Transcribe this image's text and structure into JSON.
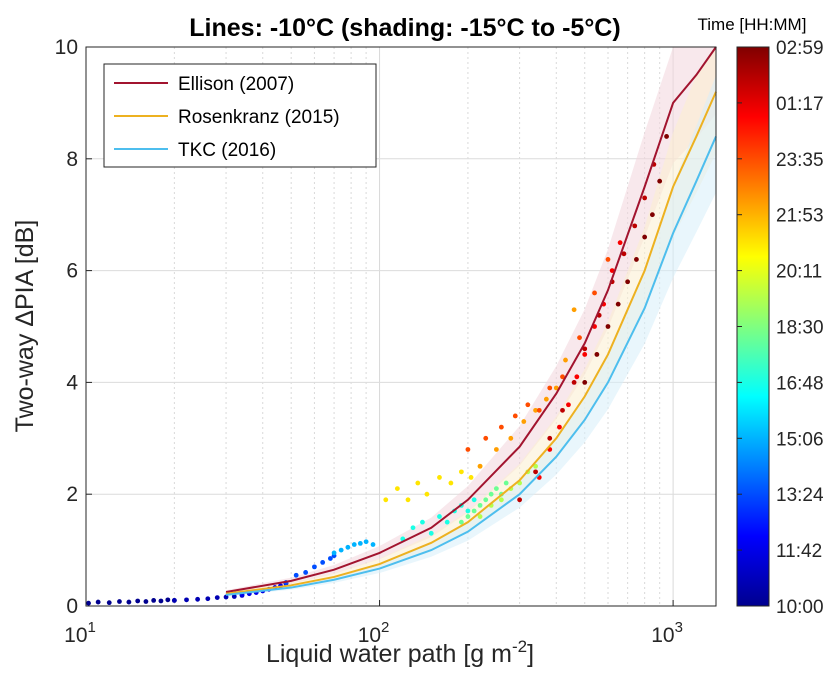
{
  "chart_data": {
    "type": "scatter",
    "title": "Lines: -10°C (shading: -15°C to -5°C)",
    "xlabel_main": "Liquid water path [g m",
    "xlabel_sup": "-2",
    "xlabel_end": "]",
    "ylabel": "Two-way ΔPIA [dB]",
    "xscale": "log",
    "xlim": [
      10,
      1400
    ],
    "ylim": [
      0,
      10
    ],
    "grid": true,
    "x_ticks": [
      10,
      100,
      1000
    ],
    "x_tick_labels": [
      {
        "base": "10",
        "exp": "1"
      },
      {
        "base": "10",
        "exp": "2"
      },
      {
        "base": "10",
        "exp": "3"
      }
    ],
    "y_ticks": [
      0,
      2,
      4,
      6,
      8,
      10
    ],
    "legend_position": "top-left",
    "series": [
      {
        "name": "Ellison (2007)",
        "color": "#a2142f",
        "x": [
          30,
          50,
          70,
          100,
          150,
          200,
          300,
          400,
          500,
          600,
          800,
          1000,
          1200,
          1400
        ],
        "y": [
          0.25,
          0.45,
          0.65,
          0.95,
          1.4,
          1.9,
          2.85,
          3.8,
          4.7,
          5.65,
          7.5,
          9.0,
          9.5,
          10
        ]
      },
      {
        "name": "Rosenkranz (2015)",
        "color": "#edb120",
        "x": [
          30,
          50,
          70,
          100,
          150,
          200,
          300,
          400,
          500,
          600,
          800,
          1000,
          1200,
          1400
        ],
        "y": [
          0.22,
          0.37,
          0.52,
          0.75,
          1.13,
          1.5,
          2.25,
          3.0,
          3.75,
          4.5,
          6.0,
          7.5,
          8.4,
          9.2
        ]
      },
      {
        "name": "TKC (2016)",
        "color": "#4dbeee",
        "x": [
          30,
          50,
          70,
          100,
          150,
          200,
          300,
          400,
          500,
          600,
          800,
          1000,
          1200,
          1400
        ],
        "y": [
          0.2,
          0.33,
          0.47,
          0.67,
          1.0,
          1.33,
          2.0,
          2.67,
          3.33,
          4.0,
          5.33,
          6.67,
          7.6,
          8.4
        ]
      }
    ],
    "observations": [
      {
        "time_frac": 0.0,
        "x": [
          10.2,
          11,
          12,
          13,
          14,
          15,
          16,
          17,
          18,
          19,
          20
        ],
        "y": [
          0.05,
          0.07,
          0.06,
          0.08,
          0.07,
          0.09,
          0.08,
          0.1,
          0.09,
          0.11,
          0.1
        ]
      },
      {
        "time_frac": 0.04,
        "x": [
          20,
          22,
          24,
          26,
          28,
          30,
          32,
          34
        ],
        "y": [
          0.1,
          0.11,
          0.12,
          0.13,
          0.15,
          0.16,
          0.17,
          0.19
        ]
      },
      {
        "time_frac": 0.1,
        "x": [
          34,
          36,
          38,
          40,
          42,
          44,
          46,
          48
        ],
        "y": [
          0.2,
          0.22,
          0.24,
          0.27,
          0.3,
          0.33,
          0.36,
          0.4
        ]
      },
      {
        "time_frac": 0.2,
        "x": [
          48,
          52,
          56,
          60,
          64,
          68,
          70
        ],
        "y": [
          0.42,
          0.55,
          0.6,
          0.7,
          0.78,
          0.85,
          0.9
        ]
      },
      {
        "time_frac": 0.3,
        "x": [
          70,
          74,
          78,
          82,
          86,
          90,
          95
        ],
        "y": [
          0.95,
          1.0,
          1.05,
          1.1,
          1.12,
          1.15,
          1.1
        ]
      },
      {
        "time_frac": 0.4,
        "x": [
          120,
          130,
          140,
          150,
          160,
          170,
          180,
          190,
          200,
          210
        ],
        "y": [
          1.2,
          1.4,
          1.5,
          1.3,
          1.6,
          1.5,
          1.7,
          1.8,
          1.7,
          1.9
        ]
      },
      {
        "time_frac": 0.48,
        "x": [
          190,
          200,
          210,
          220,
          230,
          240,
          250,
          260,
          270
        ],
        "y": [
          1.5,
          1.6,
          1.7,
          1.8,
          1.9,
          2.0,
          2.1,
          2.0,
          2.2
        ]
      },
      {
        "time_frac": 0.55,
        "x": [
          220,
          240,
          260,
          280,
          300,
          320,
          340
        ],
        "y": [
          1.6,
          1.8,
          1.9,
          2.1,
          2.2,
          2.4,
          2.5
        ]
      },
      {
        "time_frac": 0.65,
        "x": [
          105,
          115,
          125,
          135,
          145,
          160,
          175,
          190,
          205,
          220
        ],
        "y": [
          1.9,
          2.1,
          1.9,
          2.2,
          2.0,
          2.3,
          2.2,
          2.4,
          2.3,
          2.5
        ]
      },
      {
        "time_frac": 0.72,
        "x": [
          220,
          250,
          280,
          310,
          340,
          370,
          400,
          430,
          460
        ],
        "y": [
          2.5,
          2.8,
          3.0,
          3.3,
          3.5,
          3.7,
          3.9,
          4.4,
          5.3
        ]
      },
      {
        "time_frac": 0.8,
        "x": [
          200,
          230,
          260,
          290,
          320,
          350,
          380,
          420,
          480,
          540,
          600
        ],
        "y": [
          2.8,
          3.0,
          3.2,
          3.4,
          3.6,
          3.5,
          3.9,
          4.1,
          4.8,
          5.6,
          6.2
        ]
      },
      {
        "time_frac": 0.88,
        "x": [
          350,
          380,
          410,
          440,
          470,
          500,
          540,
          580,
          620,
          660
        ],
        "y": [
          2.3,
          2.8,
          3.2,
          3.6,
          4.1,
          4.5,
          5.0,
          5.4,
          6.0,
          6.5
        ]
      },
      {
        "time_frac": 0.94,
        "x": [
          300,
          340,
          380,
          420,
          460,
          500,
          560,
          620,
          680,
          740,
          800,
          860
        ],
        "y": [
          1.9,
          2.4,
          3.0,
          3.5,
          4.0,
          4.6,
          5.2,
          5.8,
          6.3,
          6.8,
          7.3,
          7.9
        ]
      },
      {
        "time_frac": 1.0,
        "x": [
          500,
          550,
          600,
          650,
          700,
          750,
          800,
          850,
          900,
          950
        ],
        "y": [
          4.0,
          4.5,
          5.0,
          5.4,
          5.8,
          6.2,
          6.6,
          7.0,
          7.6,
          8.4
        ]
      }
    ],
    "colorbar": {
      "title": "Time [HH:MM]",
      "tick_labels": [
        "02:59",
        "01:17",
        "23:35",
        "21:53",
        "20:11",
        "18:30",
        "16:48",
        "15:06",
        "13:24",
        "11:42",
        "10:00"
      ],
      "colormap": "jet"
    }
  }
}
